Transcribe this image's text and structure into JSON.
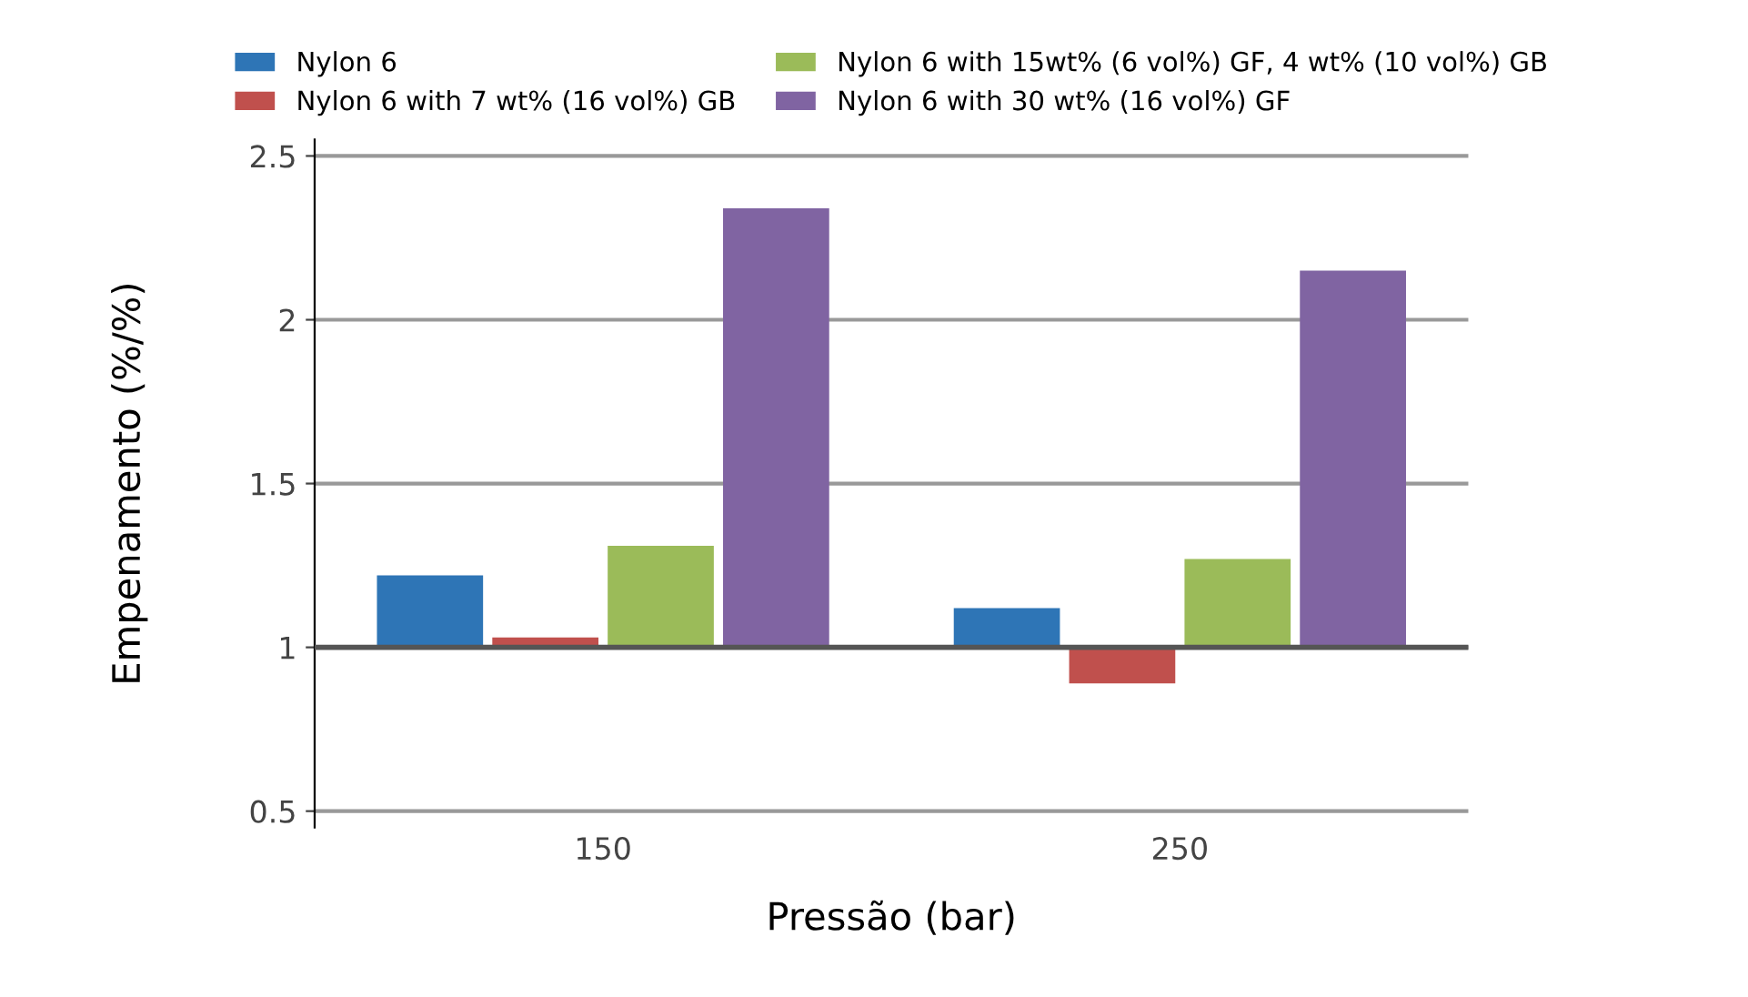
{
  "chart_data": {
    "type": "bar",
    "xlabel": "Pressão (bar)",
    "ylabel": "Empenamento (%/%)",
    "categories": [
      "150",
      "250"
    ],
    "series": [
      {
        "name": "Nylon 6",
        "color": "#2e75b6",
        "values": [
          0.22,
          0.12
        ],
        "base": [
          1,
          1
        ]
      },
      {
        "name": "Nylon 6 with 7 wt% (16 vol%) GB",
        "color": "#c0504d",
        "values": [
          0.03,
          -0.11
        ],
        "base": [
          1,
          1
        ]
      },
      {
        "name": "Nylon 6 with 15wt% (6 vol%) GF, 4 wt% (10 vol%) GB",
        "color": "#9bbb59",
        "values": [
          0.31,
          0.27
        ],
        "base": [
          1,
          1
        ]
      },
      {
        "name": "Nylon 6 with 30 wt% (16 vol%) GF",
        "color": "#8064a2",
        "values": [
          1.34,
          1.15
        ],
        "base": [
          1,
          1
        ]
      }
    ],
    "ylim": [
      0.45,
      2.55
    ],
    "yticks": [
      0.5,
      1,
      1.5,
      2,
      2.5
    ],
    "ref_lines": [
      {
        "axis": "y",
        "value": 1,
        "color": "#555555"
      }
    ],
    "grid": "y",
    "legend": "top"
  }
}
